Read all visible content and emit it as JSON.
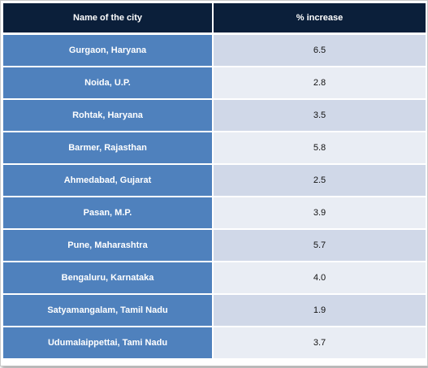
{
  "chart_data": {
    "type": "table",
    "columns": [
      "Name of the city",
      "% increase"
    ],
    "rows": [
      {
        "city": "Gurgaon, Haryana",
        "value": "6.5"
      },
      {
        "city": "Noida, U.P.",
        "value": "2.8"
      },
      {
        "city": "Rohtak, Haryana",
        "value": "3.5"
      },
      {
        "city": "Barmer, Rajasthan",
        "value": "5.8"
      },
      {
        "city": "Ahmedabad,  Gujarat",
        "value": "2.5"
      },
      {
        "city": "Pasan, M.P.",
        "value": "3.9"
      },
      {
        "city": "Pune,  Maharashtra",
        "value": "5.7"
      },
      {
        "city": "Bengaluru, Karnataka",
        "value": "4.0"
      },
      {
        "city": "Satyamangalam, Tamil Nadu",
        "value": "1.9"
      },
      {
        "city": "Udumalaippettai, Tami Nadu",
        "value": "3.7"
      }
    ],
    "colors": {
      "header_bg": "#0b1f3a",
      "city_bg": "#4f81bd",
      "value_bg_odd": "#d0d8e8",
      "value_bg_even": "#e9edf4"
    }
  }
}
